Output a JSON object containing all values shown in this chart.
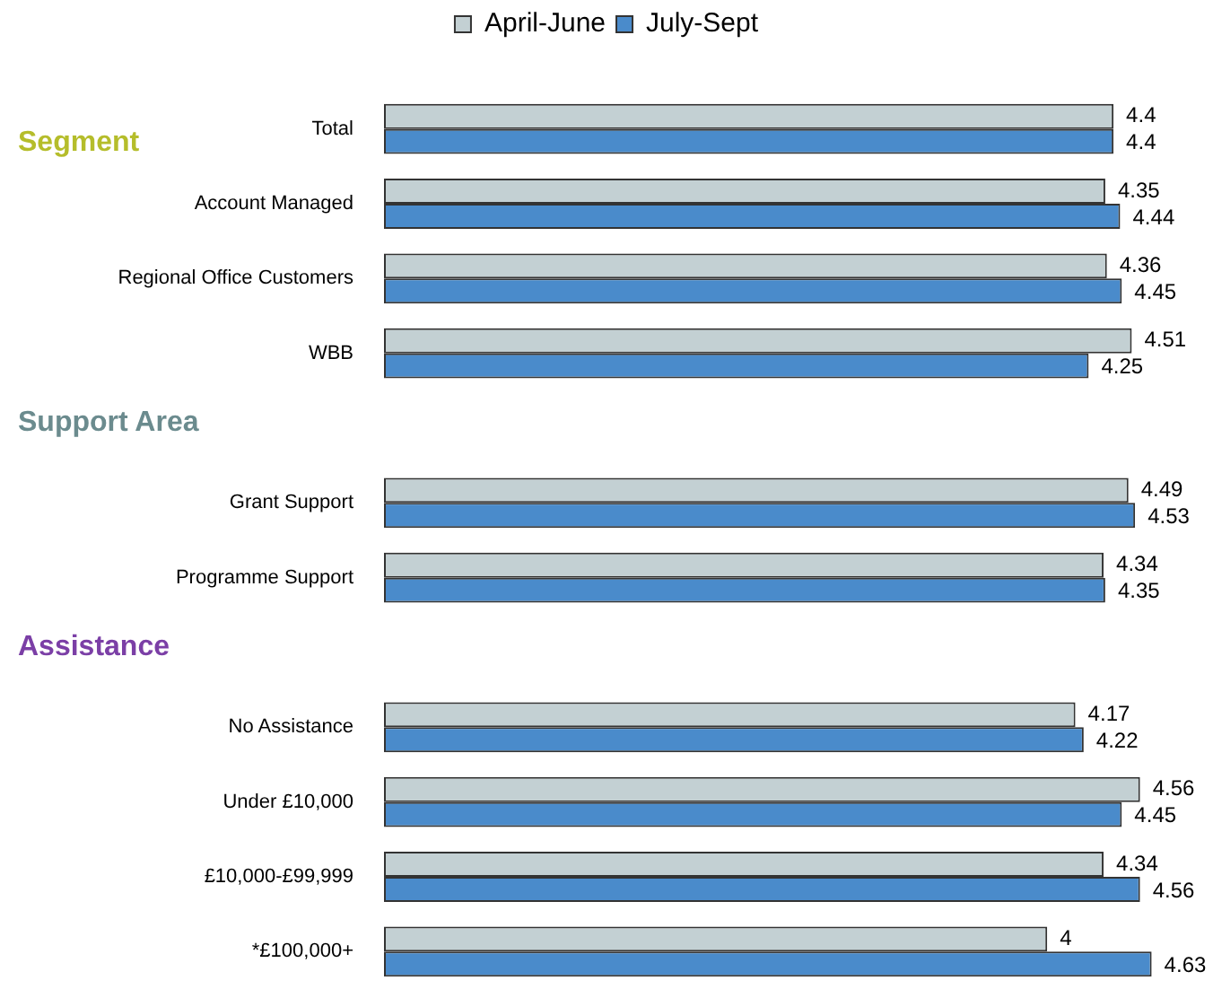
{
  "chart_data": {
    "type": "bar",
    "orientation": "horizontal",
    "categories": [
      "Total",
      "Account Managed",
      "Regional Office Customers",
      "WBB",
      null,
      "Grant Support",
      "Programme Support",
      null,
      "No Assistance",
      "Under £10,000",
      "£10,000-£99,999",
      "*£100,000+"
    ],
    "series": [
      {
        "name": "April-June",
        "color": "#c3d0d3",
        "values": [
          4.4,
          4.35,
          4.36,
          4.51,
          null,
          4.49,
          4.34,
          null,
          4.17,
          4.56,
          4.34,
          4
        ]
      },
      {
        "name": "July-Sept",
        "color": "#4a8bcb",
        "values": [
          4.4,
          4.44,
          4.45,
          4.25,
          null,
          4.53,
          4.35,
          null,
          4.22,
          4.45,
          4.56,
          4.63
        ]
      }
    ],
    "annotations": [
      "Segment",
      "Support Area",
      "Assistance"
    ],
    "data_labels": true,
    "legend": "top",
    "tick_labels": "y"
  }
}
